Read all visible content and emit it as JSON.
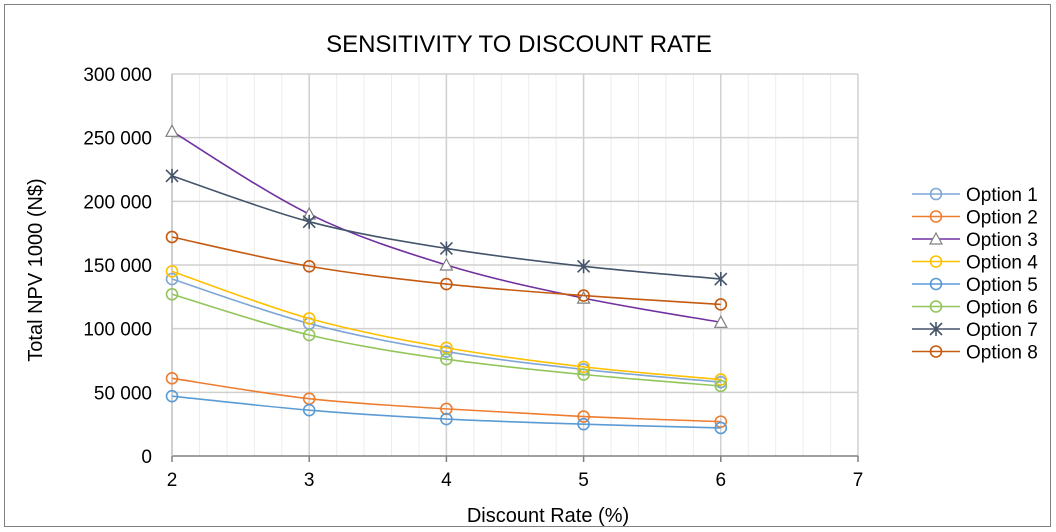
{
  "chart_data": {
    "type": "line",
    "title": "SENSITIVITY TO DISCOUNT RATE",
    "xlabel": "Discount Rate (%)",
    "ylabel": "Total NPV 1000 (N$)",
    "xlim": [
      2,
      7
    ],
    "ylim": [
      0,
      300000
    ],
    "x_ticks": [
      "2",
      "3",
      "4",
      "5",
      "6",
      "7"
    ],
    "y_ticks": [
      "0",
      "50 000",
      "100 000",
      "150 000",
      "200 000",
      "250 000",
      "300 000"
    ],
    "grid": true,
    "legend_position": "right",
    "x": [
      2,
      3,
      4,
      5,
      6
    ],
    "series": [
      {
        "name": "Option 1",
        "color": "#7fa6d6",
        "marker": "circle",
        "values": [
          139000,
          104000,
          82000,
          68000,
          58000
        ]
      },
      {
        "name": "Option 2",
        "color": "#ed7d31",
        "marker": "circle",
        "values": [
          61000,
          45000,
          37000,
          31000,
          27000
        ]
      },
      {
        "name": "Option 3",
        "color": "#7030a0",
        "marker": "triangle",
        "values": [
          255000,
          190000,
          150000,
          124000,
          105000
        ]
      },
      {
        "name": "Option 4",
        "color": "#ffc000",
        "marker": "circle",
        "values": [
          145000,
          108000,
          85000,
          70000,
          60000
        ]
      },
      {
        "name": "Option 5",
        "color": "#5b9bd5",
        "marker": "circle",
        "values": [
          47000,
          36000,
          29000,
          25000,
          22000
        ]
      },
      {
        "name": "Option 6",
        "color": "#92c55a",
        "marker": "circle",
        "values": [
          127000,
          95000,
          76000,
          64000,
          55000
        ]
      },
      {
        "name": "Option 7",
        "color": "#44546a",
        "marker": "star",
        "values": [
          220000,
          184000,
          163000,
          149000,
          139000
        ]
      },
      {
        "name": "Option 8",
        "color": "#c55a11",
        "marker": "circle",
        "values": [
          172000,
          149000,
          135000,
          126000,
          119000
        ]
      }
    ]
  }
}
